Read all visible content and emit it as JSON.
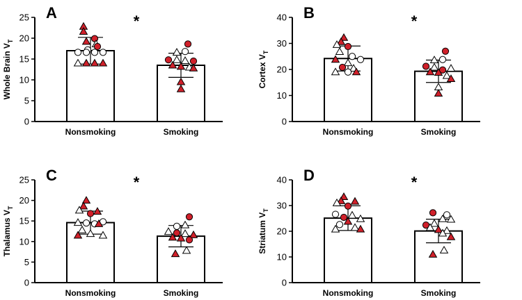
{
  "chart_data": [
    {
      "panel": "A",
      "type": "bar",
      "ylabel_main": "Whole Brain V",
      "ylabel_sub": "T",
      "ylim": [
        0,
        25
      ],
      "yticks": [
        0,
        5,
        10,
        15,
        20,
        25
      ],
      "categories": [
        "Nonsmoking",
        "Smoking"
      ],
      "means": [
        17.0,
        13.5
      ],
      "sd": [
        3.2,
        2.9
      ],
      "significance": "*",
      "points": [
        [
          {
            "v": 22.8,
            "shape": "triangle",
            "fill": "red",
            "dx": -0.5
          },
          {
            "v": 21.6,
            "shape": "triangle",
            "fill": "red",
            "dx": -0.5
          },
          {
            "v": 19.9,
            "shape": "circle",
            "fill": "red",
            "dx": 0.3
          },
          {
            "v": 19.2,
            "shape": "triangle",
            "fill": "red",
            "dx": -0.3
          },
          {
            "v": 18.6,
            "shape": "triangle",
            "fill": "white",
            "dx": 0.4
          },
          {
            "v": 18.0,
            "shape": "circle",
            "fill": "red",
            "dx": 0.5
          },
          {
            "v": 17.2,
            "shape": "circle",
            "fill": "white",
            "dx": -0.2
          },
          {
            "v": 16.6,
            "shape": "circle",
            "fill": "white",
            "dx": -0.9
          },
          {
            "v": 16.6,
            "shape": "circle",
            "fill": "white",
            "dx": -0.3
          },
          {
            "v": 16.6,
            "shape": "circle",
            "fill": "white",
            "dx": 0.3
          },
          {
            "v": 16.6,
            "shape": "circle",
            "fill": "white",
            "dx": 0.9
          },
          {
            "v": 14.0,
            "shape": "triangle",
            "fill": "white",
            "dx": -0.9
          },
          {
            "v": 14.0,
            "shape": "triangle",
            "fill": "red",
            "dx": -0.3
          },
          {
            "v": 14.0,
            "shape": "triangle",
            "fill": "red",
            "dx": 0.3
          },
          {
            "v": 14.0,
            "shape": "triangle",
            "fill": "red",
            "dx": 0.9
          }
        ],
        [
          {
            "v": 18.6,
            "shape": "circle",
            "fill": "red",
            "dx": 0.5
          },
          {
            "v": 16.8,
            "shape": "circle",
            "fill": "white",
            "dx": 0.3
          },
          {
            "v": 16.6,
            "shape": "triangle",
            "fill": "white",
            "dx": -0.3
          },
          {
            "v": 14.8,
            "shape": "circle",
            "fill": "red",
            "dx": -0.9
          },
          {
            "v": 14.8,
            "shape": "triangle",
            "fill": "white",
            "dx": -0.3
          },
          {
            "v": 14.6,
            "shape": "triangle",
            "fill": "white",
            "dx": 0.3
          },
          {
            "v": 14.5,
            "shape": "circle",
            "fill": "red",
            "dx": 0.9
          },
          {
            "v": 13.5,
            "shape": "triangle",
            "fill": "red",
            "dx": -0.6
          },
          {
            "v": 13.2,
            "shape": "triangle",
            "fill": "red",
            "dx": 0.0
          },
          {
            "v": 13.0,
            "shape": "triangle",
            "fill": "white",
            "dx": 0.6
          },
          {
            "v": 12.8,
            "shape": "triangle",
            "fill": "red",
            "dx": 0.9
          },
          {
            "v": 9.5,
            "shape": "triangle",
            "fill": "red",
            "dx": 0.0
          },
          {
            "v": 7.8,
            "shape": "triangle",
            "fill": "red",
            "dx": 0.0
          }
        ]
      ]
    },
    {
      "panel": "B",
      "type": "bar",
      "ylabel_main": "Cortex V",
      "ylabel_sub": "T",
      "ylim": [
        0,
        40
      ],
      "yticks": [
        0,
        10,
        20,
        30,
        40
      ],
      "categories": [
        "Nonsmoking",
        "Smoking"
      ],
      "means": [
        24.2,
        19.3
      ],
      "sd": [
        4.8,
        4.3
      ],
      "significance": "*",
      "points": [
        [
          {
            "v": 32.2,
            "shape": "triangle",
            "fill": "red",
            "dx": -0.3
          },
          {
            "v": 30.6,
            "shape": "triangle",
            "fill": "red",
            "dx": -0.5
          },
          {
            "v": 29.5,
            "shape": "triangle",
            "fill": "white",
            "dx": -0.8
          },
          {
            "v": 28.8,
            "shape": "circle",
            "fill": "red",
            "dx": 0.0
          },
          {
            "v": 26.8,
            "shape": "triangle",
            "fill": "white",
            "dx": -0.6
          },
          {
            "v": 25.0,
            "shape": "circle",
            "fill": "white",
            "dx": 0.3
          },
          {
            "v": 23.8,
            "shape": "circle",
            "fill": "white",
            "dx": 0.9
          },
          {
            "v": 23.8,
            "shape": "triangle",
            "fill": "red",
            "dx": -0.9
          },
          {
            "v": 22.5,
            "shape": "triangle",
            "fill": "white",
            "dx": 0.0
          },
          {
            "v": 20.8,
            "shape": "circle",
            "fill": "red",
            "dx": -0.4
          },
          {
            "v": 20.4,
            "shape": "triangle",
            "fill": "white",
            "dx": 0.4
          },
          {
            "v": 19.0,
            "shape": "triangle",
            "fill": "white",
            "dx": -0.9
          },
          {
            "v": 19.0,
            "shape": "triangle",
            "fill": "red",
            "dx": 0.6
          },
          {
            "v": 19.0,
            "shape": "circle",
            "fill": "white",
            "dx": 0.0
          }
        ],
        [
          {
            "v": 27.0,
            "shape": "circle",
            "fill": "red",
            "dx": 0.5
          },
          {
            "v": 23.8,
            "shape": "circle",
            "fill": "white",
            "dx": 0.3
          },
          {
            "v": 23.6,
            "shape": "triangle",
            "fill": "white",
            "dx": -0.3
          },
          {
            "v": 21.2,
            "shape": "circle",
            "fill": "red",
            "dx": -0.9
          },
          {
            "v": 20.8,
            "shape": "triangle",
            "fill": "white",
            "dx": -0.3
          },
          {
            "v": 20.4,
            "shape": "triangle",
            "fill": "white",
            "dx": 0.9
          },
          {
            "v": 19.8,
            "shape": "circle",
            "fill": "red",
            "dx": 0.3
          },
          {
            "v": 19.0,
            "shape": "triangle",
            "fill": "red",
            "dx": -0.6
          },
          {
            "v": 18.8,
            "shape": "triangle",
            "fill": "red",
            "dx": 0.0
          },
          {
            "v": 17.6,
            "shape": "triangle",
            "fill": "white",
            "dx": 0.6
          },
          {
            "v": 16.4,
            "shape": "triangle",
            "fill": "red",
            "dx": 0.9
          },
          {
            "v": 13.2,
            "shape": "triangle",
            "fill": "white",
            "dx": 0.0
          },
          {
            "v": 10.8,
            "shape": "triangle",
            "fill": "red",
            "dx": 0.0
          }
        ]
      ]
    },
    {
      "panel": "C",
      "type": "bar",
      "ylabel_main": "Thalamus V",
      "ylabel_sub": "T",
      "ylim": [
        0,
        25
      ],
      "yticks": [
        0,
        5,
        10,
        15,
        20,
        25
      ],
      "categories": [
        "Nonsmoking",
        "Smoking"
      ],
      "means": [
        14.6,
        11.3
      ],
      "sd": [
        2.8,
        2.6
      ],
      "significance": "*",
      "points": [
        [
          {
            "v": 20.0,
            "shape": "triangle",
            "fill": "red",
            "dx": -0.3
          },
          {
            "v": 18.6,
            "shape": "triangle",
            "fill": "red",
            "dx": -0.5
          },
          {
            "v": 17.6,
            "shape": "triangle",
            "fill": "white",
            "dx": -0.8
          },
          {
            "v": 17.3,
            "shape": "triangle",
            "fill": "red",
            "dx": 0.5
          },
          {
            "v": 16.8,
            "shape": "circle",
            "fill": "red",
            "dx": 0.0
          },
          {
            "v": 14.8,
            "shape": "circle",
            "fill": "white",
            "dx": 0.9
          },
          {
            "v": 14.6,
            "shape": "triangle",
            "fill": "white",
            "dx": -0.9
          },
          {
            "v": 14.5,
            "shape": "circle",
            "fill": "white",
            "dx": -0.3
          },
          {
            "v": 14.3,
            "shape": "circle",
            "fill": "white",
            "dx": 0.3
          },
          {
            "v": 14.3,
            "shape": "triangle",
            "fill": "red",
            "dx": 0.6
          },
          {
            "v": 12.8,
            "shape": "triangle",
            "fill": "white",
            "dx": -0.6
          },
          {
            "v": 11.9,
            "shape": "triangle",
            "fill": "white",
            "dx": 0.0
          },
          {
            "v": 11.5,
            "shape": "triangle",
            "fill": "red",
            "dx": -0.9
          },
          {
            "v": 11.5,
            "shape": "triangle",
            "fill": "white",
            "dx": 0.9
          }
        ],
        [
          {
            "v": 16.0,
            "shape": "circle",
            "fill": "red",
            "dx": 0.6
          },
          {
            "v": 14.0,
            "shape": "triangle",
            "fill": "white",
            "dx": 0.3
          },
          {
            "v": 13.7,
            "shape": "circle",
            "fill": "white",
            "dx": -0.3
          },
          {
            "v": 12.4,
            "shape": "triangle",
            "fill": "white",
            "dx": -0.9
          },
          {
            "v": 12.1,
            "shape": "circle",
            "fill": "red",
            "dx": -0.3
          },
          {
            "v": 11.9,
            "shape": "triangle",
            "fill": "white",
            "dx": 0.3
          },
          {
            "v": 11.6,
            "shape": "triangle",
            "fill": "red",
            "dx": 0.9
          },
          {
            "v": 11.0,
            "shape": "triangle",
            "fill": "red",
            "dx": -0.6
          },
          {
            "v": 10.8,
            "shape": "triangle",
            "fill": "red",
            "dx": 0.0
          },
          {
            "v": 10.4,
            "shape": "circle",
            "fill": "red",
            "dx": 0.6
          },
          {
            "v": 7.8,
            "shape": "triangle",
            "fill": "white",
            "dx": 0.4
          },
          {
            "v": 7.0,
            "shape": "triangle",
            "fill": "red",
            "dx": -0.4
          }
        ]
      ]
    },
    {
      "panel": "D",
      "type": "bar",
      "ylabel_main": "Striatum V",
      "ylabel_sub": "T",
      "ylim": [
        0,
        40
      ],
      "yticks": [
        0,
        10,
        20,
        30,
        40
      ],
      "categories": [
        "Nonsmoking",
        "Smoking"
      ],
      "means": [
        25.1,
        20.1
      ],
      "sd": [
        4.8,
        4.6
      ],
      "significance": "*",
      "points": [
        [
          {
            "v": 33.4,
            "shape": "triangle",
            "fill": "red",
            "dx": -0.3
          },
          {
            "v": 31.8,
            "shape": "triangle",
            "fill": "red",
            "dx": -0.5
          },
          {
            "v": 31.0,
            "shape": "triangle",
            "fill": "white",
            "dx": -0.8
          },
          {
            "v": 31.6,
            "shape": "triangle",
            "fill": "red",
            "dx": 0.5
          },
          {
            "v": 29.8,
            "shape": "circle",
            "fill": "red",
            "dx": 0.0
          },
          {
            "v": 26.6,
            "shape": "circle",
            "fill": "white",
            "dx": -0.9
          },
          {
            "v": 26.2,
            "shape": "triangle",
            "fill": "white",
            "dx": 0.3
          },
          {
            "v": 25.4,
            "shape": "circle",
            "fill": "red",
            "dx": -0.3
          },
          {
            "v": 24.8,
            "shape": "triangle",
            "fill": "white",
            "dx": 0.9
          },
          {
            "v": 23.8,
            "shape": "triangle",
            "fill": "red",
            "dx": 0.0
          },
          {
            "v": 22.6,
            "shape": "circle",
            "fill": "white",
            "dx": -0.6
          },
          {
            "v": 21.4,
            "shape": "triangle",
            "fill": "white",
            "dx": 0.5
          },
          {
            "v": 20.8,
            "shape": "triangle",
            "fill": "white",
            "dx": -0.9
          },
          {
            "v": 20.8,
            "shape": "triangle",
            "fill": "red",
            "dx": 0.9
          }
        ],
        [
          {
            "v": 27.2,
            "shape": "circle",
            "fill": "red",
            "dx": -0.4
          },
          {
            "v": 26.4,
            "shape": "circle",
            "fill": "white",
            "dx": 0.6
          },
          {
            "v": 24.8,
            "shape": "triangle",
            "fill": "white",
            "dx": 0.3
          },
          {
            "v": 24.6,
            "shape": "triangle",
            "fill": "white",
            "dx": 0.9
          },
          {
            "v": 23.0,
            "shape": "triangle",
            "fill": "white",
            "dx": -0.3
          },
          {
            "v": 22.4,
            "shape": "circle",
            "fill": "red",
            "dx": -0.9
          },
          {
            "v": 21.4,
            "shape": "triangle",
            "fill": "white",
            "dx": -0.6
          },
          {
            "v": 20.6,
            "shape": "triangle",
            "fill": "red",
            "dx": 0.0
          },
          {
            "v": 20.2,
            "shape": "triangle",
            "fill": "white",
            "dx": 0.6
          },
          {
            "v": 19.2,
            "shape": "triangle",
            "fill": "white",
            "dx": 0.3
          },
          {
            "v": 17.8,
            "shape": "triangle",
            "fill": "red",
            "dx": 0.9
          },
          {
            "v": 12.6,
            "shape": "triangle",
            "fill": "white",
            "dx": 0.4
          },
          {
            "v": 11.0,
            "shape": "triangle",
            "fill": "red",
            "dx": -0.4
          }
        ]
      ]
    }
  ],
  "colors": {
    "marker_red": "#d0202a",
    "axis": "#000000",
    "bar_fill": "#ffffff"
  }
}
